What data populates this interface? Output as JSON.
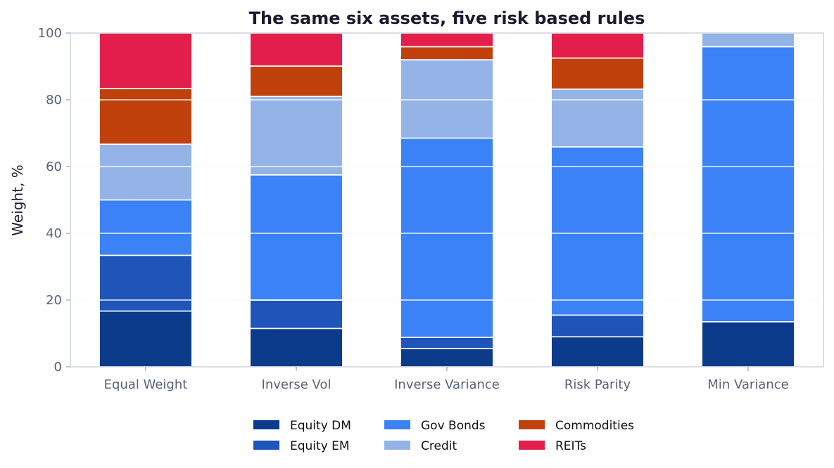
{
  "chart_data": {
    "type": "bar",
    "stacked": true,
    "title": "The same six assets, five risk based rules",
    "xlabel": "",
    "ylabel": "Weight, %",
    "ylim": [
      0,
      100
    ],
    "yticks": [
      0,
      20,
      40,
      60,
      80,
      100
    ],
    "grid": true,
    "legend_position": "bottom-center",
    "categories": [
      "Equal Weight",
      "Inverse Vol",
      "Inverse Variance",
      "Risk Parity",
      "Min Variance"
    ],
    "series": [
      {
        "name": "Equity DM",
        "color": "#0b3b8a",
        "values": [
          16.7,
          11.5,
          5.5,
          9.0,
          13.5
        ]
      },
      {
        "name": "Equity EM",
        "color": "#1f55b8",
        "values": [
          16.7,
          8.5,
          3.3,
          6.5,
          0.0
        ]
      },
      {
        "name": "Gov Bonds",
        "color": "#3b82f6",
        "values": [
          16.6,
          37.5,
          59.7,
          50.4,
          82.4
        ]
      },
      {
        "name": "Credit",
        "color": "#94b4e8",
        "values": [
          16.7,
          23.5,
          23.5,
          17.3,
          4.1
        ]
      },
      {
        "name": "Commodities",
        "color": "#c0410c",
        "values": [
          16.7,
          9.1,
          3.9,
          9.3,
          0.0
        ]
      },
      {
        "name": "REITs",
        "color": "#e31e4b",
        "values": [
          16.6,
          9.9,
          4.1,
          7.5,
          0.0
        ]
      }
    ]
  }
}
